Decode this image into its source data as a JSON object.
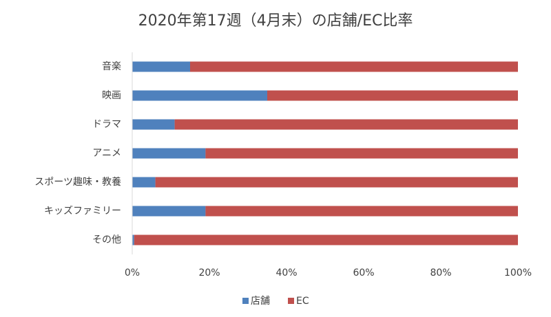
{
  "chart_data": {
    "type": "bar",
    "orientation": "horizontal",
    "stacked": true,
    "title": "2020年第17週（4月末）の店舗/EC比率",
    "categories": [
      "音楽",
      "映画",
      "ドラマ",
      "アニメ",
      "スポーツ趣味・教養",
      "キッズファミリー",
      "その他"
    ],
    "series": [
      {
        "name": "店舗",
        "color": "#4f81bd",
        "values": [
          15,
          35,
          11,
          19,
          6,
          19,
          0.5
        ]
      },
      {
        "name": "EC",
        "color": "#c0504d",
        "values": [
          85,
          65,
          89,
          81,
          94,
          81,
          99.5
        ]
      }
    ],
    "xlim": [
      0,
      100
    ],
    "xticks": [
      {
        "value": 0,
        "label": "0%"
      },
      {
        "value": 20,
        "label": "20%"
      },
      {
        "value": 40,
        "label": "40%"
      },
      {
        "value": 60,
        "label": "60%"
      },
      {
        "value": 80,
        "label": "80%"
      },
      {
        "value": 100,
        "label": "100%"
      }
    ],
    "legend": "bottom"
  }
}
